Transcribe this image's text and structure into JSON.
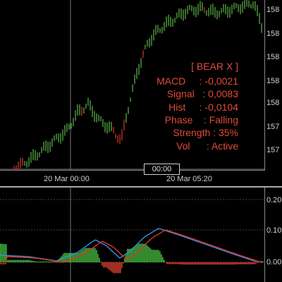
{
  "price_axis": {
    "labels": [
      "158",
      "158",
      "158",
      "158",
      "158",
      "157",
      "157"
    ]
  },
  "time_axis": {
    "labels": [
      "20 Mar 00:00",
      "20 Mar 05:20"
    ],
    "crosshair_label": "00:00"
  },
  "oscillator_axis": {
    "labels": [
      "0.20",
      "0.10",
      "0.00"
    ]
  },
  "indicator_panel": {
    "title": "[ BEAR X ]",
    "rows": [
      "MACD     : -0,0021",
      "Signal   : 0,0083",
      "Hist     : -0,0104",
      "Phase    : Falling",
      "Strength : 35%",
      "Vol      : Active"
    ],
    "color": "#e24a3a"
  },
  "colors": {
    "bull_bar": "#5fb84a",
    "bear_bar": "#d43a2a",
    "macd_line": "#3a8fe0",
    "signal_line": "#e0302a",
    "hist_up": "#3fae3a",
    "hist_down": "#c83a2a",
    "grid": "#666666"
  }
}
